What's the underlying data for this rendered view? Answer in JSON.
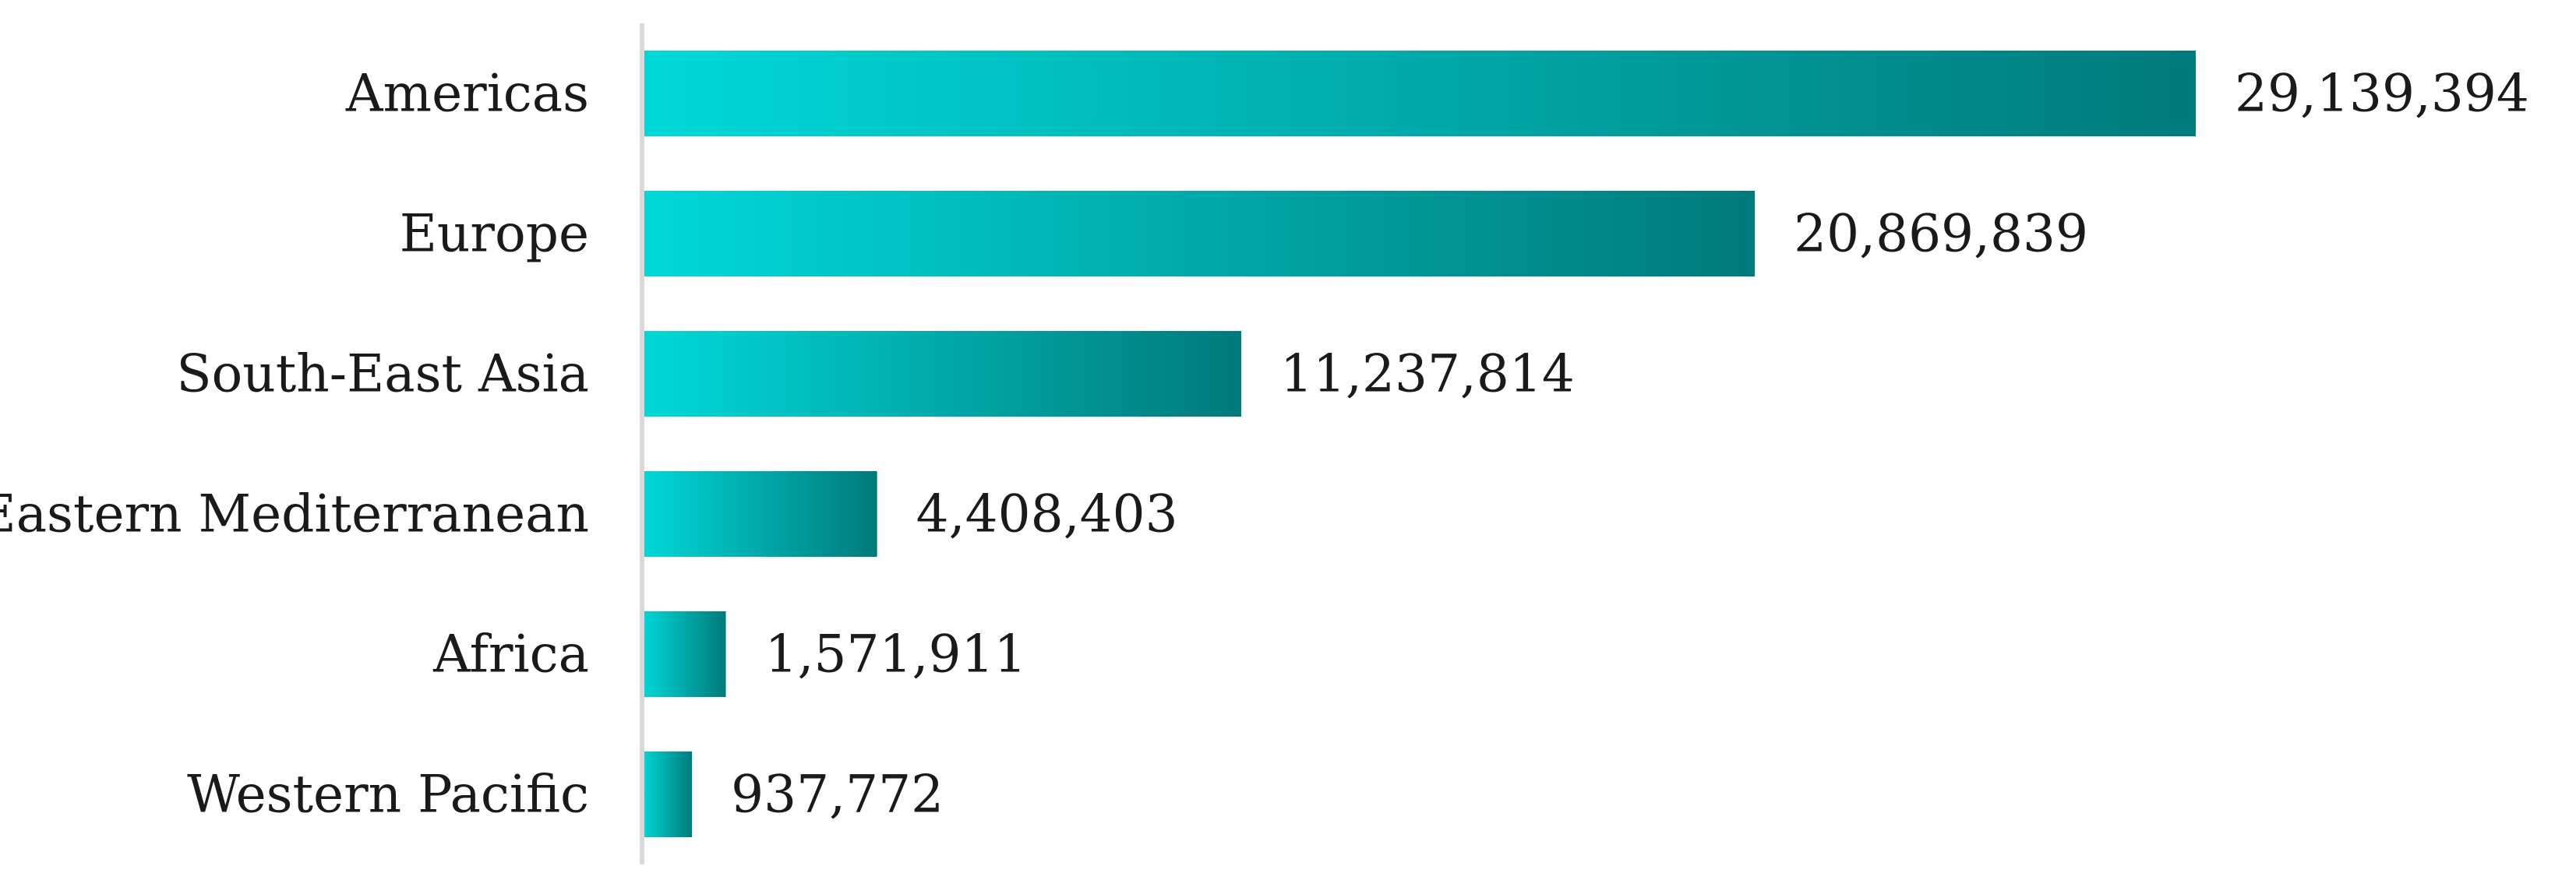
{
  "chart_data": {
    "type": "bar",
    "orientation": "horizontal",
    "title": "",
    "xlabel": "",
    "ylabel": "",
    "categories": [
      "Americas",
      "Europe",
      "South-East Asia",
      "Eastern Mediterranean",
      "Africa",
      "Western Pacific"
    ],
    "values": [
      29139394,
      20869839,
      11237814,
      4408403,
      1571911,
      937772
    ],
    "value_labels": [
      "29,139,394",
      "20,869,839",
      "11,237,814",
      "4,408,403",
      "1,571,911",
      "937,772"
    ],
    "xlim": [
      0,
      29139394
    ],
    "grid": false,
    "legend": "none",
    "colors": {
      "bar_gradient_start": "#00d8d8",
      "bar_gradient_end": "#007a7a",
      "axis_line": "#d9d9d9",
      "text": "#1a1a1a"
    }
  }
}
